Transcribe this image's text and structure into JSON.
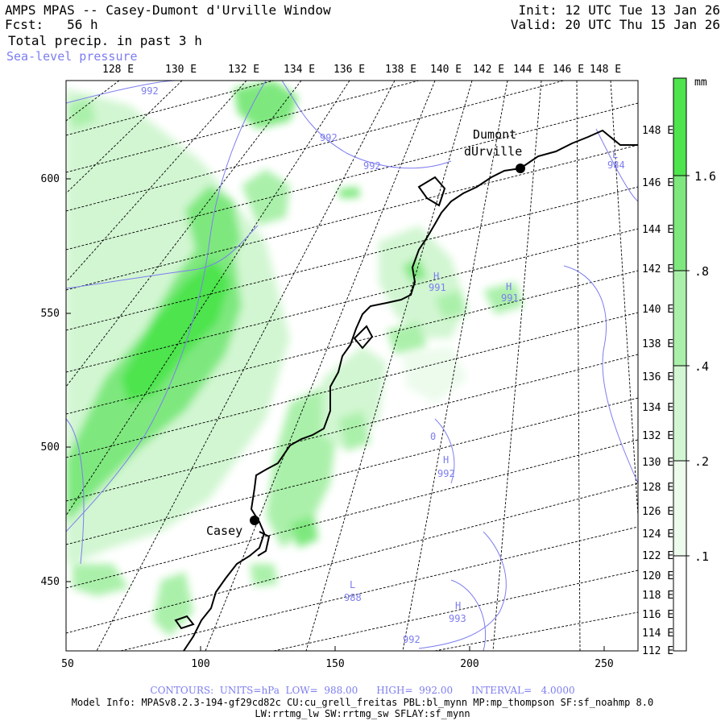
{
  "header": {
    "title": "AMPS MPAS -- Casey-Dumont d'Urville Window",
    "fcst_label": "Fcst:",
    "fcst_hours": "56 h",
    "init": "Init: 12 UTC Tue 13 Jan 26",
    "valid": "Valid: 20 UTC Thu 15 Jan 26",
    "field": "Total precip. in past 3 h",
    "contour_field": "Sea-level pressure"
  },
  "axes": {
    "top_lon": [
      "128 E",
      "130 E",
      "132 E",
      "134 E",
      "136 E",
      "138 E",
      "140 E",
      "142 E",
      "144 E",
      "146 E",
      "148 E"
    ],
    "right_lon": [
      "148 E",
      "146 E",
      "144 E",
      "142 E",
      "140 E",
      "138 E",
      "136 E",
      "134 E",
      "132 E",
      "130 E",
      "128 E",
      "126 E",
      "124 E",
      "122 E",
      "120 E",
      "118 E",
      "116 E",
      "114 E",
      "112 E"
    ],
    "left_y": [
      "600",
      "550",
      "500",
      "450"
    ],
    "bottom_x": [
      "50",
      "100",
      "150",
      "200",
      "250"
    ]
  },
  "colorbar": {
    "unit": "mm",
    "levels": [
      ".1",
      ".2",
      ".4",
      ".8",
      "1.6"
    ],
    "colors": [
      "#ffffff",
      "#ecfbec",
      "#d2f6d2",
      "#aaf0aa",
      "#7ee87e",
      "#4ee44e"
    ]
  },
  "stations": [
    {
      "name": "Dumont",
      "name2": "dUrville"
    },
    {
      "name": "Casey"
    }
  ],
  "pressure_labels": [
    {
      "mark": "",
      "value": "992"
    },
    {
      "mark": "",
      "value": "992"
    },
    {
      "mark": "",
      "value": "992"
    },
    {
      "mark": "L",
      "value": "984"
    },
    {
      "mark": "H",
      "value": "991"
    },
    {
      "mark": "H",
      "value": "991"
    },
    {
      "mark": "",
      "value": "0"
    },
    {
      "mark": "H",
      "value": "992"
    },
    {
      "mark": "L",
      "value": "988"
    },
    {
      "mark": "H",
      "value": "993"
    },
    {
      "mark": "",
      "value": "992"
    }
  ],
  "footer": {
    "contours": "CONTOURS:  UNITS=hPa  LOW=  988.00      HIGH=  992.00      INTERVAL=   4.0000",
    "model_info": "Model Info: MPASv8.2.3-194-gf29cd82c CU:cu_grell_freitas PBL:bl_mynn MP:mp_thompson SF:sf_noahmp 8.0",
    "model_info2": "LW:rrtmg_lw SW:rrtmg_sw SFLAY:sf_mynn"
  },
  "colors": {
    "contour": "#7d7df0",
    "coast": "#000000",
    "grid": "#000000"
  }
}
